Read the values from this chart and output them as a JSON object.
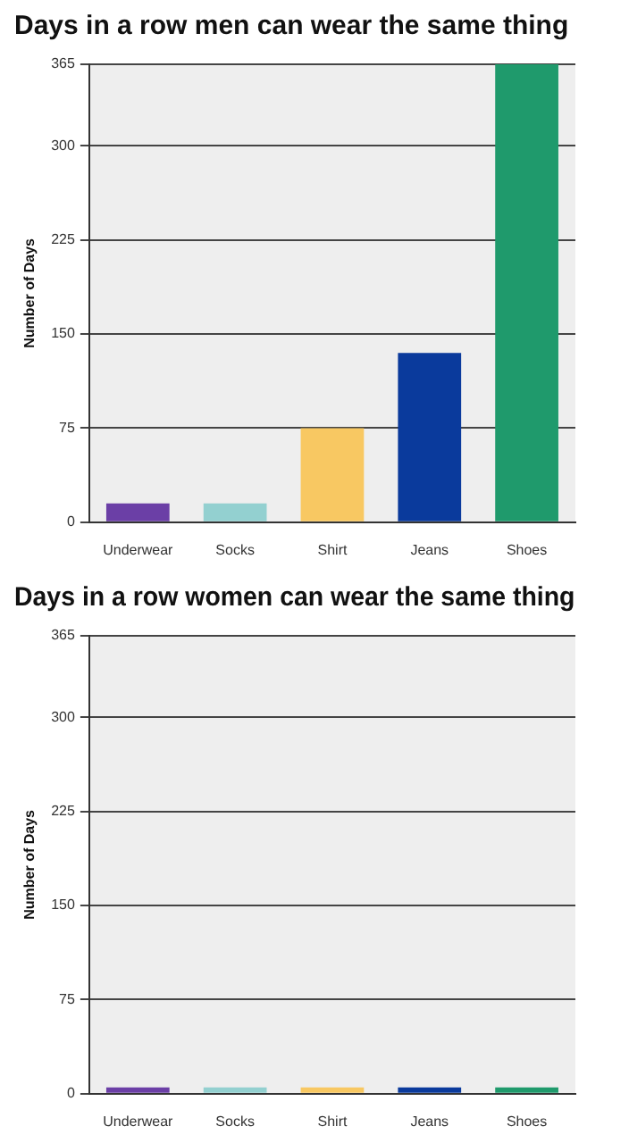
{
  "chart_data": [
    {
      "type": "bar",
      "title": "Days in a row men can wear the same thing",
      "ylabel": "Number of Days",
      "categories": [
        "Underwear",
        "Socks",
        "Shirt",
        "Jeans",
        "Shoes"
      ],
      "values": [
        15,
        15,
        75,
        135,
        365
      ],
      "colors": [
        "#6b3fa6",
        "#93d0d0",
        "#f8c862",
        "#0a3a9c",
        "#1f9a6c"
      ],
      "ylim": [
        0,
        365
      ],
      "yticks": [
        0,
        75,
        150,
        225,
        300,
        365
      ],
      "grid": "y"
    },
    {
      "type": "bar",
      "title": "Days in a row women can wear the same thing",
      "ylabel": "Number of Days",
      "categories": [
        "Underwear",
        "Socks",
        "Shirt",
        "Jeans",
        "Shoes"
      ],
      "values": [
        5,
        5,
        5,
        5,
        5
      ],
      "colors": [
        "#6b3fa6",
        "#93d0d0",
        "#f8c862",
        "#0a3a9c",
        "#1f9a6c"
      ],
      "ylim": [
        0,
        365
      ],
      "yticks": [
        0,
        75,
        150,
        225,
        300,
        365
      ],
      "grid": "y"
    }
  ]
}
